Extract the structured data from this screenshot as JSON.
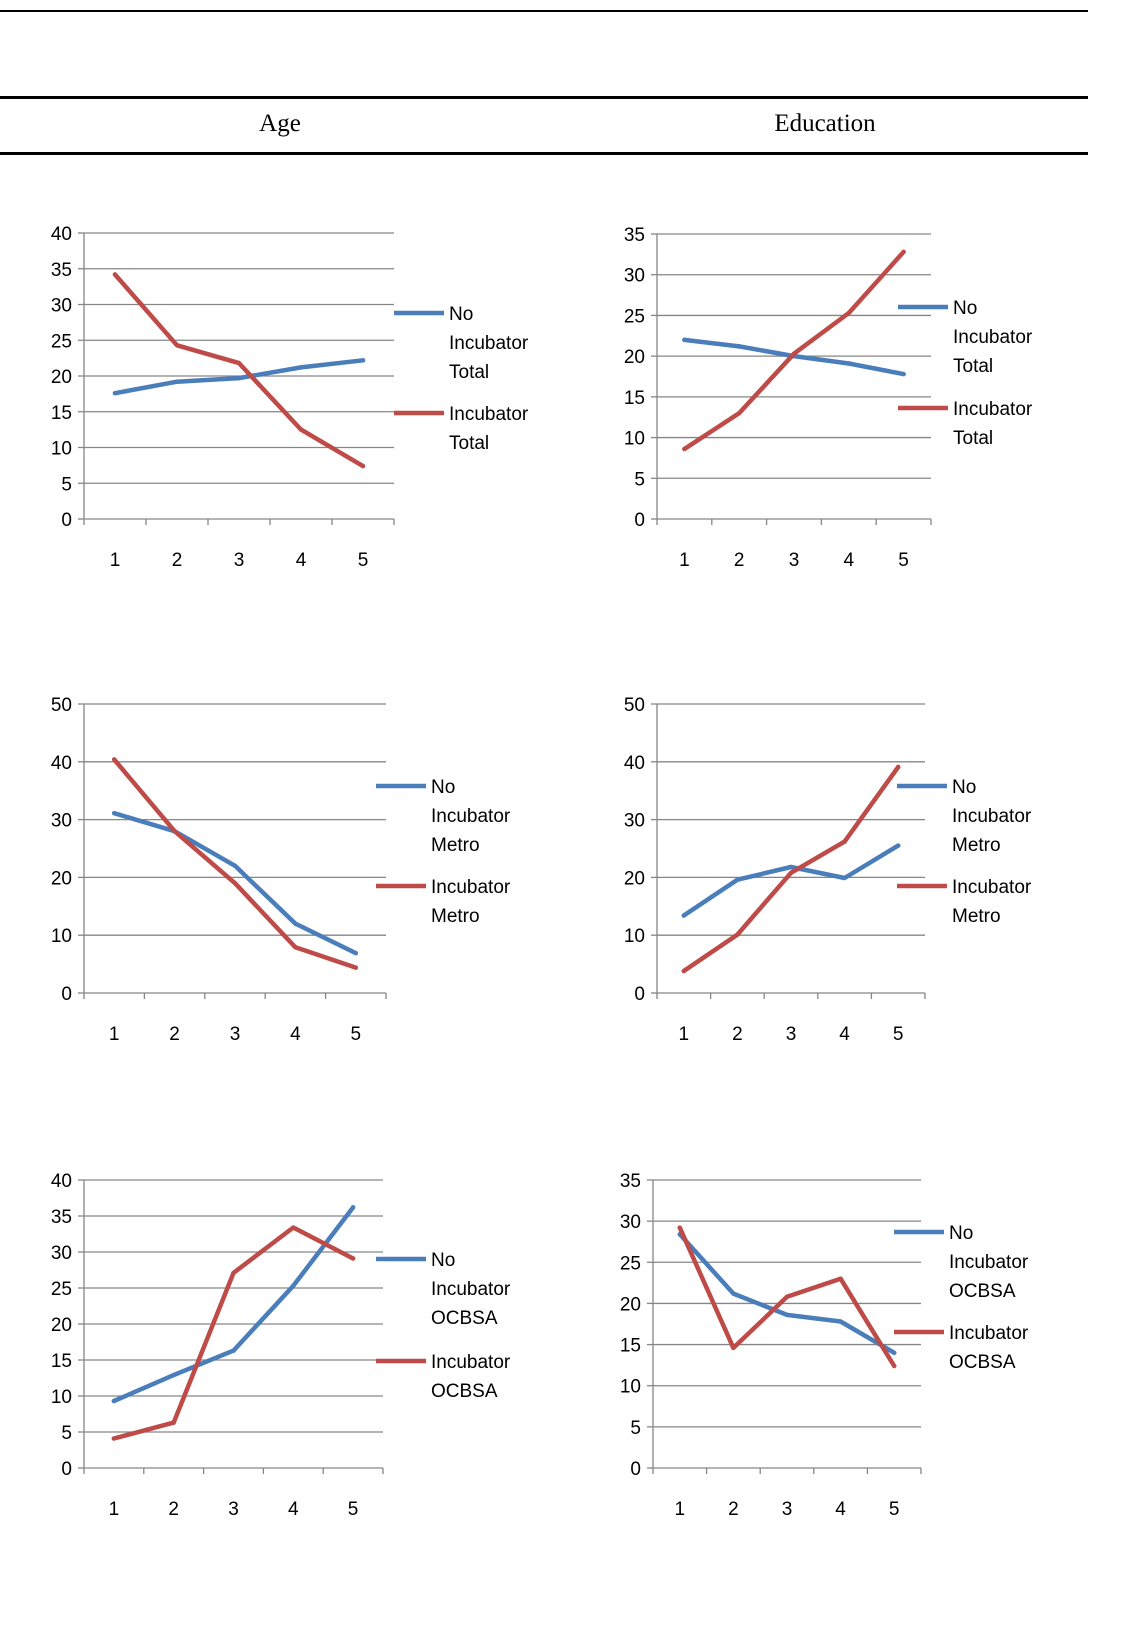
{
  "table_header": {
    "col1": "Age",
    "col2": "Education"
  },
  "colors": {
    "no_incubator": "#4a7ebb",
    "incubator": "#be4b48",
    "grid": "#868686"
  },
  "chart_data": [
    {
      "type": "line",
      "categories": [
        "1",
        "2",
        "3",
        "4",
        "5"
      ],
      "ylim": [
        0,
        40
      ],
      "yticks": [
        0,
        5,
        10,
        15,
        20,
        25,
        30,
        35,
        40
      ],
      "series": [
        {
          "name": "No Incubator Total",
          "legend_lines": [
            "No",
            "Incubator",
            "Total"
          ],
          "values": [
            17.6,
            19.2,
            19.7,
            21.2,
            22.2
          ]
        },
        {
          "name": "Incubator Total",
          "legend_lines": [
            "Incubator",
            "Total"
          ],
          "values": [
            34.2,
            24.3,
            21.8,
            12.5,
            7.4
          ]
        }
      ]
    },
    {
      "type": "line",
      "categories": [
        "1",
        "2",
        "3",
        "4",
        "5"
      ],
      "ylim": [
        0,
        35
      ],
      "yticks": [
        0,
        5,
        10,
        15,
        20,
        25,
        30,
        35
      ],
      "series": [
        {
          "name": "No Incubator Total",
          "legend_lines": [
            "No",
            "Incubator",
            "Total"
          ],
          "values": [
            22.0,
            21.2,
            20.0,
            19.1,
            17.8
          ]
        },
        {
          "name": "Incubator Total",
          "legend_lines": [
            "Incubator",
            "Total"
          ],
          "values": [
            8.6,
            13.0,
            20.3,
            25.3,
            32.8
          ]
        }
      ]
    },
    {
      "type": "line",
      "categories": [
        "1",
        "2",
        "3",
        "4",
        "5"
      ],
      "ylim": [
        0,
        50
      ],
      "yticks": [
        0,
        10,
        20,
        30,
        40,
        50
      ],
      "series": [
        {
          "name": "No Incubator Metro",
          "legend_lines": [
            "No",
            "Incubator",
            "Metro"
          ],
          "values": [
            31.1,
            28.0,
            22.0,
            12.0,
            6.9
          ]
        },
        {
          "name": "Incubator Metro",
          "legend_lines": [
            "Incubator",
            "Metro"
          ],
          "values": [
            40.4,
            28.0,
            19.0,
            7.9,
            4.4
          ]
        }
      ]
    },
    {
      "type": "line",
      "categories": [
        "1",
        "2",
        "3",
        "4",
        "5"
      ],
      "ylim": [
        0,
        50
      ],
      "yticks": [
        0,
        10,
        20,
        30,
        40,
        50
      ],
      "series": [
        {
          "name": "No Incubator Metro",
          "legend_lines": [
            "No",
            "Incubator",
            "Metro"
          ],
          "values": [
            13.4,
            19.6,
            21.8,
            19.9,
            25.5
          ]
        },
        {
          "name": "Incubator Metro",
          "legend_lines": [
            "Incubator",
            "Metro"
          ],
          "values": [
            3.8,
            10.1,
            20.8,
            26.2,
            39.1
          ]
        }
      ]
    },
    {
      "type": "line",
      "categories": [
        "1",
        "2",
        "3",
        "4",
        "5"
      ],
      "ylim": [
        0,
        40
      ],
      "yticks": [
        0,
        5,
        10,
        15,
        20,
        25,
        30,
        35,
        40
      ],
      "series": [
        {
          "name": "No Incubator OCBSA",
          "legend_lines": [
            "No",
            "Incubator",
            "OCBSA"
          ],
          "values": [
            9.3,
            12.9,
            16.3,
            25.3,
            36.2
          ]
        },
        {
          "name": "Incubator OCBSA",
          "legend_lines": [
            "Incubator",
            "OCBSA"
          ],
          "values": [
            4.1,
            6.3,
            27.1,
            33.4,
            29.1
          ]
        }
      ]
    },
    {
      "type": "line",
      "categories": [
        "1",
        "2",
        "3",
        "4",
        "5"
      ],
      "ylim": [
        0,
        35
      ],
      "yticks": [
        0,
        5,
        10,
        15,
        20,
        25,
        30,
        35
      ],
      "series": [
        {
          "name": "No Incubator OCBSA",
          "legend_lines": [
            "No",
            "Incubator",
            "OCBSA"
          ],
          "values": [
            28.4,
            21.2,
            18.6,
            17.8,
            14.0
          ]
        },
        {
          "name": "Incubator OCBSA",
          "legend_lines": [
            "Incubator",
            "OCBSA"
          ],
          "values": [
            29.2,
            14.6,
            20.8,
            23.0,
            12.4
          ]
        }
      ]
    }
  ]
}
